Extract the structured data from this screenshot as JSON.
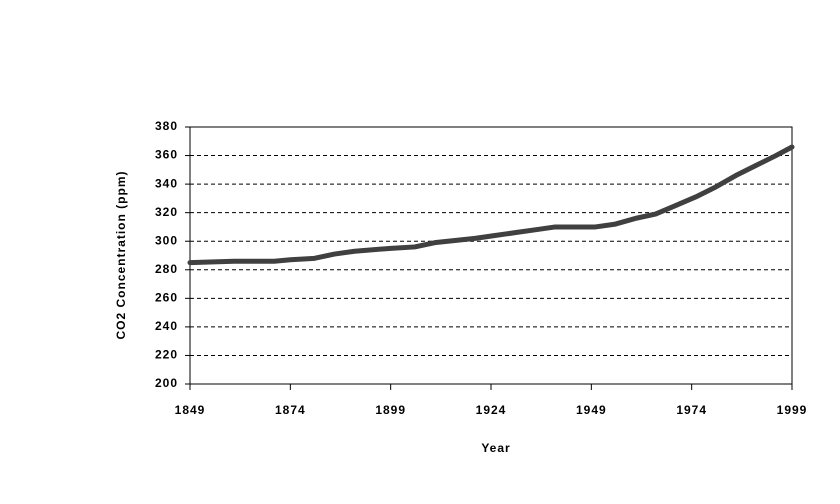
{
  "chart_data": {
    "type": "line",
    "xlabel": "Year",
    "ylabel": "CO2 Concentration (ppm)",
    "x": [
      1849,
      1860,
      1870,
      1874,
      1880,
      1885,
      1890,
      1899,
      1905,
      1910,
      1920,
      1925,
      1930,
      1935,
      1940,
      1945,
      1950,
      1955,
      1960,
      1965,
      1970,
      1975,
      1980,
      1985,
      1990,
      1995,
      1999
    ],
    "series": [
      {
        "name": "CO2",
        "color": "#404040",
        "values": [
          285,
          286,
          286,
          287,
          288,
          291,
          293,
          295,
          296,
          299,
          302,
          304,
          306,
          308,
          310,
          310,
          310,
          312,
          316,
          319,
          325,
          331,
          338,
          346,
          353,
          360,
          366
        ]
      }
    ],
    "xlim": [
      1849,
      1999
    ],
    "xticks": [
      1849,
      1874,
      1899,
      1924,
      1949,
      1974,
      1999
    ],
    "ylim": [
      200,
      380
    ],
    "yticks": [
      200,
      220,
      240,
      260,
      280,
      300,
      320,
      340,
      360,
      380
    ],
    "grid": true
  }
}
